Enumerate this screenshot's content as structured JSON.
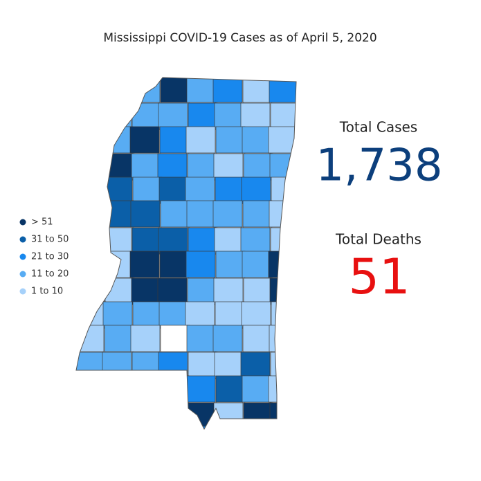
{
  "title": "Mississippi COVID-19 Cases as of April 5, 2020",
  "legend": [
    {
      "label": "> 51",
      "color": "#083566"
    },
    {
      "label": "31 to 50",
      "color": "#0b5fa8"
    },
    {
      "label": "21 to 30",
      "color": "#1888ee"
    },
    {
      "label": "11 to 20",
      "color": "#58acf3"
    },
    {
      "label": "1 to 10",
      "color": "#a6d1fa"
    }
  ],
  "stats": [
    {
      "label": "Total Cases",
      "value": "1,738",
      "color": "#0c3f7c"
    },
    {
      "label": "Total Deaths",
      "value": "51",
      "color": "#e81010"
    }
  ]
}
